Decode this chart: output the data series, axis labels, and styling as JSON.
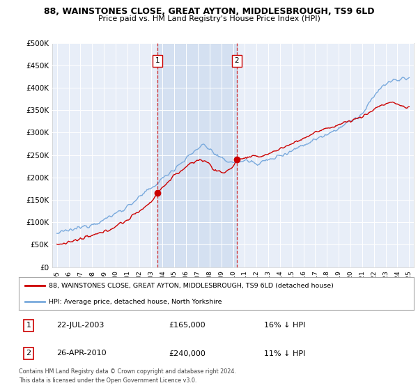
{
  "title": "88, WAINSTONES CLOSE, GREAT AYTON, MIDDLESBROUGH, TS9 6LD",
  "subtitle": "Price paid vs. HM Land Registry's House Price Index (HPI)",
  "legend_line1": "88, WAINSTONES CLOSE, GREAT AYTON, MIDDLESBROUGH, TS9 6LD (detached house)",
  "legend_line2": "HPI: Average price, detached house, North Yorkshire",
  "annotation1_date": "22-JUL-2003",
  "annotation1_price": "£165,000",
  "annotation1_hpi": "16% ↓ HPI",
  "annotation1_year": 2003.55,
  "annotation1_value": 165000,
  "annotation2_date": "26-APR-2010",
  "annotation2_price": "£240,000",
  "annotation2_hpi": "11% ↓ HPI",
  "annotation2_year": 2010.32,
  "annotation2_value": 240000,
  "ylim": [
    0,
    500000
  ],
  "yticks": [
    0,
    50000,
    100000,
    150000,
    200000,
    250000,
    300000,
    350000,
    400000,
    450000,
    500000
  ],
  "background_color": "#ffffff",
  "plot_bg_color": "#e8eef8",
  "shade_color": "#d0ddf0",
  "grid_color": "#ffffff",
  "hpi_color": "#7aaadd",
  "price_color": "#cc0000",
  "dashed_color": "#cc0000",
  "copyright_text": "Contains HM Land Registry data © Crown copyright and database right 2024.\nThis data is licensed under the Open Government Licence v3.0."
}
